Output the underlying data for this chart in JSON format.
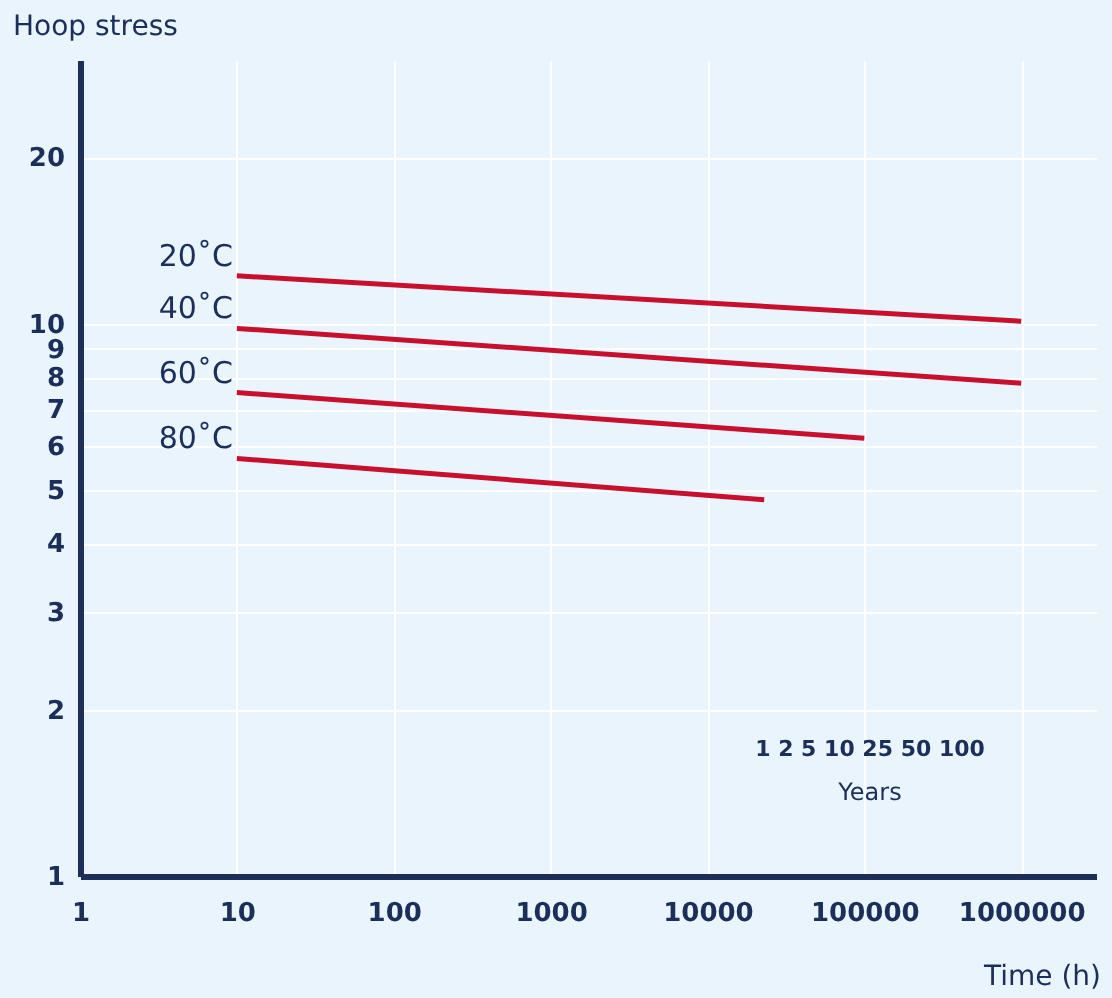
{
  "chart_data": {
    "type": "line",
    "xlabel": "Time (h)",
    "ylabel": "Hoop stress",
    "log": "xy",
    "grid": true,
    "marker": "none",
    "line_style": "solid",
    "xlim": [
      1,
      3000000
    ],
    "xticks": [
      1,
      10,
      100,
      1000,
      10000,
      100000,
      1000000
    ],
    "ylim": [
      1,
      30
    ],
    "yticks": [
      1,
      2,
      3,
      4,
      5,
      6,
      7,
      8,
      9,
      10,
      20
    ],
    "series": [
      {
        "name": "20˚C",
        "color": "#c8102e",
        "x": [
          10,
          1000000
        ],
        "values": [
          12.2,
          10.1
        ]
      },
      {
        "name": "40˚C",
        "color": "#c8102e",
        "x": [
          10,
          1000000
        ],
        "values": [
          9.8,
          7.8
        ]
      },
      {
        "name": "60˚C",
        "color": "#c8102e",
        "x": [
          10,
          100000
        ],
        "values": [
          7.5,
          6.2
        ]
      },
      {
        "name": "80˚C",
        "color": "#c8102e",
        "x": [
          10,
          23000
        ],
        "values": [
          5.7,
          4.8
        ]
      }
    ],
    "annotations": [
      "1 2 5 10 25 50 100",
      "Years"
    ]
  }
}
